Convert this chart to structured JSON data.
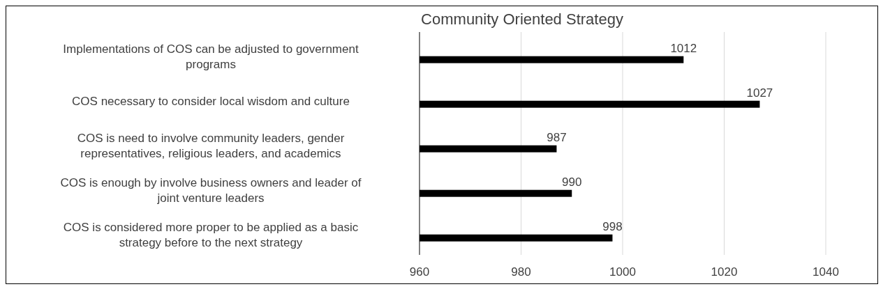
{
  "chart_data": {
    "type": "bar",
    "orientation": "horizontal",
    "title": "Community Oriented Strategy",
    "categories": [
      "Implementations of COS can be adjusted to government programs",
      "COS necessary to consider local wisdom and culture",
      "COS is need to involve community leaders, gender representatives, religious leaders, and academics",
      "COS is enough by involve business owners and leader of joint venture leaders",
      "COS is considered more proper to be applied as a basic strategy before to the next strategy"
    ],
    "values": [
      1012,
      1027,
      987,
      990,
      998
    ],
    "color": "#000000",
    "xlim": [
      960,
      1040
    ],
    "xticks": [
      960,
      980,
      1000,
      1020,
      1040
    ],
    "grid": "x",
    "data_labels": true
  }
}
